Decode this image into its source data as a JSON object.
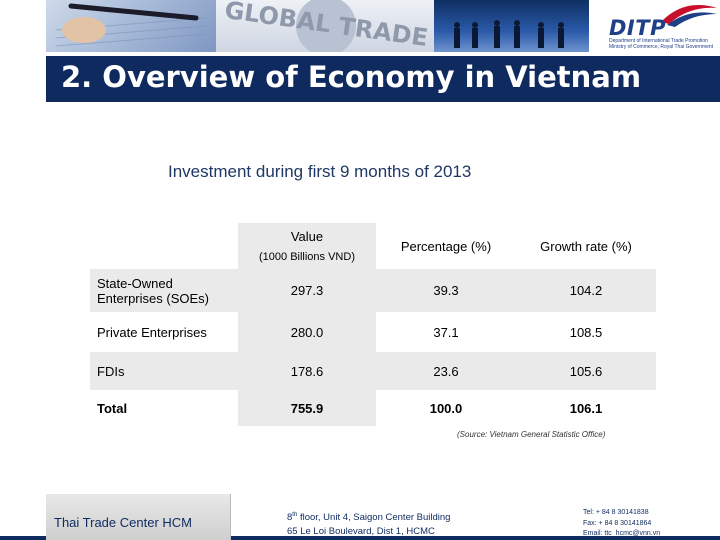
{
  "header": {
    "globe_text": "GLOBAL TRADE",
    "logo": "DITP",
    "logo_sub_1": "Department of International Trade Promotion",
    "logo_sub_2": "Ministry of Commerce, Royal Thai Government",
    "title": "2. Overview of Economy in Vietnam"
  },
  "subtitle": "Investment  during first 9 months of 2013",
  "table": {
    "headers": {
      "value": "Value",
      "value_unit": "(1000 Billions VND)",
      "percentage": "Percentage (%)",
      "growth": "Growth rate (%)"
    },
    "rows": [
      {
        "label": "State-Owned Enterprises (SOEs)",
        "value": "297.3",
        "percentage": "39.3",
        "growth": "104.2"
      },
      {
        "label": "Private Enterprises",
        "value": "280.0",
        "percentage": "37.1",
        "growth": "108.5"
      },
      {
        "label": "FDIs",
        "value": "178.6",
        "percentage": "23.6",
        "growth": "105.6"
      },
      {
        "label": "Total",
        "value": "755.9",
        "percentage": "100.0",
        "growth": "106.1"
      }
    ]
  },
  "source": "(Source: Vietnam General Statistic Office)",
  "footer": {
    "name": "Thai Trade Center HCM",
    "addr_floor_num": "8",
    "addr_floor_sup": "th",
    "addr_line1_rest": " floor, Unit 4, Saigon Center Building",
    "addr_line2": "65 Le Loi Boulevard, Dist 1, HCMC",
    "tel": "Tel: + 84 8 30141838",
    "fax": "Fax: + 84 8 30141864",
    "email": "Email: ttc_hcmc@vnn.vn"
  },
  "colors": {
    "navy": "#0f2a5f",
    "brand_red": "#c8102e",
    "table_shade": "#eaeaea"
  }
}
